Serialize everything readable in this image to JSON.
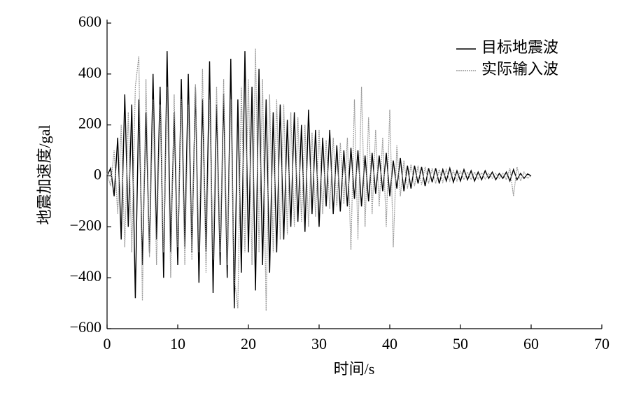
{
  "chart_data": {
    "type": "line",
    "xlabel": "时间/s",
    "ylabel": "地震加速度/gal",
    "x": [
      0,
      0.5,
      1,
      1.5,
      2,
      2.5,
      3,
      3.5,
      4,
      4.5,
      5,
      5.5,
      6,
      6.5,
      7,
      7.5,
      8,
      8.5,
      9,
      9.5,
      10,
      10.5,
      11,
      11.5,
      12,
      12.5,
      13,
      13.5,
      14,
      14.5,
      15,
      15.5,
      16,
      16.5,
      17,
      17.5,
      18,
      18.5,
      19,
      19.5,
      20,
      20.5,
      21,
      21.5,
      22,
      22.5,
      23,
      23.5,
      24,
      24.5,
      25,
      25.5,
      26,
      26.5,
      27,
      27.5,
      28,
      28.5,
      29,
      29.5,
      30,
      30.5,
      31,
      31.5,
      32,
      32.5,
      33,
      33.5,
      34,
      34.5,
      35,
      35.5,
      36,
      36.5,
      37,
      37.5,
      38,
      38.5,
      39,
      39.5,
      40,
      40.5,
      41,
      41.5,
      42,
      42.5,
      43,
      43.5,
      44,
      44.5,
      45,
      45.5,
      46,
      46.5,
      47,
      47.5,
      48,
      48.5,
      49,
      49.5,
      50,
      50.5,
      51,
      51.5,
      52,
      52.5,
      53,
      53.5,
      54,
      54.5,
      55,
      55.5,
      56,
      56.5,
      57,
      57.5,
      58,
      58.5,
      59,
      59.5,
      60
    ],
    "series": [
      {
        "name": "目标地震波",
        "color": "#000000",
        "values": [
          0,
          30,
          -80,
          150,
          -250,
          320,
          -200,
          280,
          -480,
          300,
          -350,
          250,
          -300,
          400,
          -250,
          350,
          -400,
          490,
          -300,
          250,
          -350,
          380,
          -280,
          400,
          -300,
          350,
          -420,
          300,
          -300,
          450,
          -460,
          280,
          -350,
          320,
          -400,
          460,
          -520,
          300,
          -380,
          490,
          -300,
          350,
          -450,
          420,
          -350,
          300,
          -380,
          250,
          -300,
          280,
          -250,
          220,
          -200,
          250,
          -180,
          200,
          -220,
          260,
          -150,
          180,
          -200,
          150,
          -120,
          180,
          -150,
          120,
          -140,
          100,
          -120,
          110,
          -90,
          100,
          -120,
          80,
          -100,
          90,
          -70,
          80,
          -60,
          90,
          -80,
          60,
          -50,
          70,
          -60,
          40,
          -50,
          40,
          -30,
          35,
          -40,
          30,
          -25,
          30,
          -30,
          25,
          -20,
          30,
          -25,
          20,
          -20,
          25,
          -15,
          20,
          -20,
          15,
          -15,
          20,
          -10,
          15,
          -15,
          10,
          -10,
          15,
          -20,
          25,
          -15,
          10,
          -10,
          8,
          0
        ]
      },
      {
        "name": "实际输入波",
        "color": "#999999",
        "values": [
          10,
          -40,
          100,
          -150,
          200,
          -280,
          250,
          -300,
          350,
          470,
          -490,
          380,
          -320,
          300,
          -350,
          280,
          -300,
          350,
          -400,
          320,
          -280,
          300,
          -350,
          280,
          -330,
          360,
          -300,
          420,
          -380,
          300,
          -330,
          350,
          -300,
          380,
          -350,
          300,
          -400,
          -520,
          350,
          -300,
          380,
          -350,
          500,
          -300,
          380,
          -530,
          320,
          -300,
          300,
          -250,
          280,
          -230,
          250,
          -200,
          230,
          -180,
          200,
          -200,
          170,
          -160,
          180,
          -150,
          140,
          -130,
          150,
          -120,
          130,
          -110,
          150,
          -290,
          300,
          -250,
          350,
          -200,
          230,
          -150,
          180,
          -120,
          150,
          -200,
          260,
          -280,
          120,
          -80,
          60,
          -50,
          45,
          -40,
          40,
          -35,
          35,
          -30,
          30,
          -30,
          25,
          -25,
          25,
          -20,
          20,
          -20,
          18,
          -15,
          15,
          -15,
          15,
          -12,
          12,
          -12,
          10,
          -10,
          10,
          -10,
          10,
          -15,
          30,
          -80,
          35,
          -20,
          15,
          -10,
          0
        ]
      }
    ],
    "xlim": [
      0,
      70
    ],
    "xticks": [
      0,
      10,
      20,
      30,
      40,
      50,
      60,
      70
    ],
    "ylim": [
      -600,
      600
    ],
    "yticks": [
      {
        "value": -600,
        "label": "−600"
      },
      {
        "value": -400,
        "label": "−400"
      },
      {
        "value": -200,
        "label": "−200"
      },
      0,
      200,
      400,
      600
    ],
    "legend": "upper right"
  }
}
